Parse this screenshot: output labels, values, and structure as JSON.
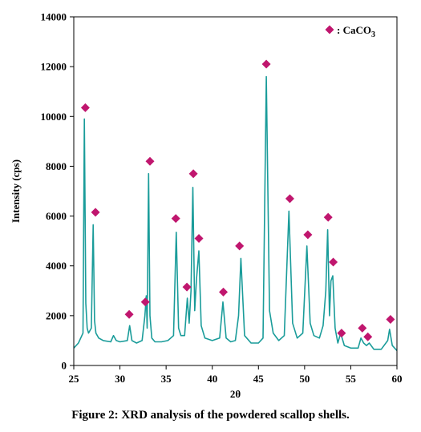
{
  "caption": "Figure 2: XRD analysis of the powdered scallop shells.",
  "chart_data": {
    "type": "line",
    "xlabel": "2θ",
    "ylabel": "Intensity (cps)",
    "xlim": [
      25,
      60
    ],
    "ylim": [
      0,
      14000
    ],
    "x_ticks": [
      "25",
      "30",
      "35",
      "40",
      "45",
      "50",
      "55",
      "60"
    ],
    "y_ticks": [
      "0",
      "2000",
      "4000",
      "6000",
      "8000",
      "10000",
      "12000",
      "14000"
    ],
    "legend": {
      "label": "CaCO",
      "subscript": "3",
      "position": "top-right",
      "separator": ": "
    },
    "colors": {
      "line": "#1a9c9a",
      "marker": "#c0166e"
    },
    "series": [
      {
        "x": [
          25,
          25.5,
          26,
          26.15,
          26.3,
          26.45,
          26.6,
          26.9,
          27.1,
          27.25,
          27.4,
          27.7,
          28.2,
          29,
          29.3,
          29.6,
          30,
          30.8,
          31.05,
          31.3,
          31.8,
          32.4,
          32.7,
          32.85,
          32.95,
          33.1,
          33.25,
          33.45,
          33.8,
          34.5,
          35.2,
          35.8,
          36.1,
          36.35,
          36.6,
          37,
          37.3,
          37.5,
          37.7,
          37.9,
          38.1,
          38.3,
          38.55,
          38.8,
          39.2,
          40,
          40.8,
          41.15,
          41.5,
          42,
          42.5,
          42.85,
          43.1,
          43.5,
          44.2,
          45,
          45.5,
          45.85,
          46.2,
          46.6,
          47.2,
          47.8,
          48.3,
          48.7,
          49.2,
          49.8,
          50.25,
          50.6,
          51,
          51.6,
          52,
          52.3,
          52.5,
          52.7,
          52.85,
          53.05,
          53.3,
          53.6,
          53.9,
          54.3,
          55,
          55.8,
          56.1,
          56.4,
          56.7,
          57,
          57.5,
          58.3,
          59,
          59.2,
          59.5,
          60
        ],
        "y": [
          700,
          900,
          1300,
          9900,
          2500,
          1500,
          1300,
          1500,
          5650,
          1800,
          1300,
          1100,
          1000,
          950,
          1200,
          1000,
          950,
          1000,
          1600,
          1000,
          900,
          1000,
          2000,
          2800,
          1500,
          7700,
          2000,
          1100,
          950,
          950,
          1000,
          1200,
          5350,
          1500,
          1200,
          1200,
          2700,
          1700,
          3000,
          7150,
          2200,
          3500,
          4600,
          1600,
          1100,
          1000,
          1100,
          2550,
          1100,
          950,
          1000,
          2000,
          4300,
          1200,
          900,
          900,
          1100,
          11600,
          2200,
          1300,
          1000,
          1200,
          6200,
          1700,
          1100,
          1300,
          4800,
          1700,
          1200,
          1100,
          1600,
          3000,
          5450,
          2000,
          3400,
          3600,
          1500,
          900,
          1300,
          800,
          700,
          700,
          1100,
          900,
          800,
          900,
          650,
          650,
          1000,
          1450,
          800,
          600
        ]
      }
    ],
    "markers": {
      "x": [
        26.25,
        27.35,
        31.0,
        32.75,
        33.25,
        36.05,
        37.25,
        37.95,
        38.55,
        41.2,
        42.95,
        45.85,
        48.4,
        50.35,
        52.55,
        53.1,
        54.0,
        56.25,
        56.85,
        59.3
      ],
      "y": [
        10350,
        6150,
        2050,
        2550,
        8200,
        5900,
        3150,
        7700,
        5100,
        2950,
        4800,
        12100,
        6700,
        5250,
        5950,
        4150,
        1300,
        1500,
        1150,
        1850
      ]
    }
  }
}
